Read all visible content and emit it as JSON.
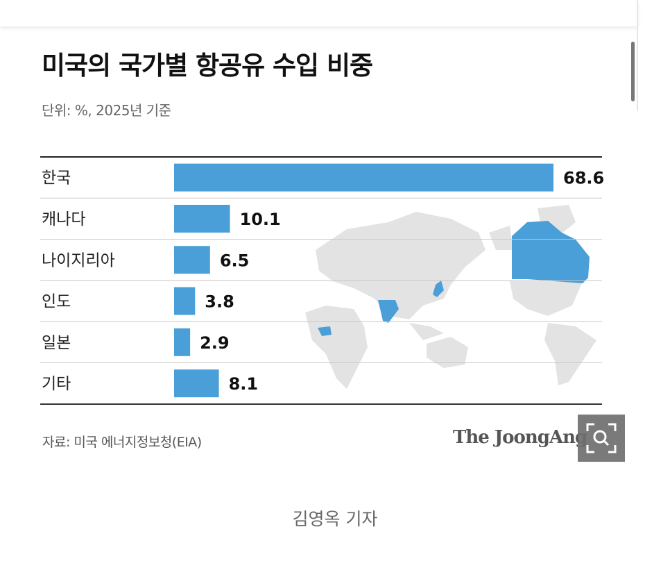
{
  "chart_data": {
    "type": "bar",
    "orientation": "horizontal",
    "title": "미국의 국가별 항공유 수입 비중",
    "subtitle": "단위: %, 2025년 기준",
    "categories": [
      "한국",
      "캐나다",
      "나이지리아",
      "인도",
      "일본",
      "기타"
    ],
    "values": [
      68.6,
      10.1,
      6.5,
      3.8,
      2.9,
      8.1
    ],
    "value_labels": [
      "68.6",
      "10.1",
      "6.5",
      "3.8",
      "2.9",
      "8.1"
    ],
    "xlim": [
      0,
      68.6
    ],
    "grid": false,
    "bar_color": "#4a9fd8",
    "source": "자료: 미국 에너지정보청(EIA)",
    "background_map": "world-map",
    "highlighted_countries_color": "#4a9fd8",
    "map_land_color": "#e3e3e3"
  },
  "brand": {
    "logo_text": "The JoongAng"
  },
  "byline": "김영옥 기자",
  "controls": {
    "zoom_icon": "magnifier-zoom-icon"
  }
}
